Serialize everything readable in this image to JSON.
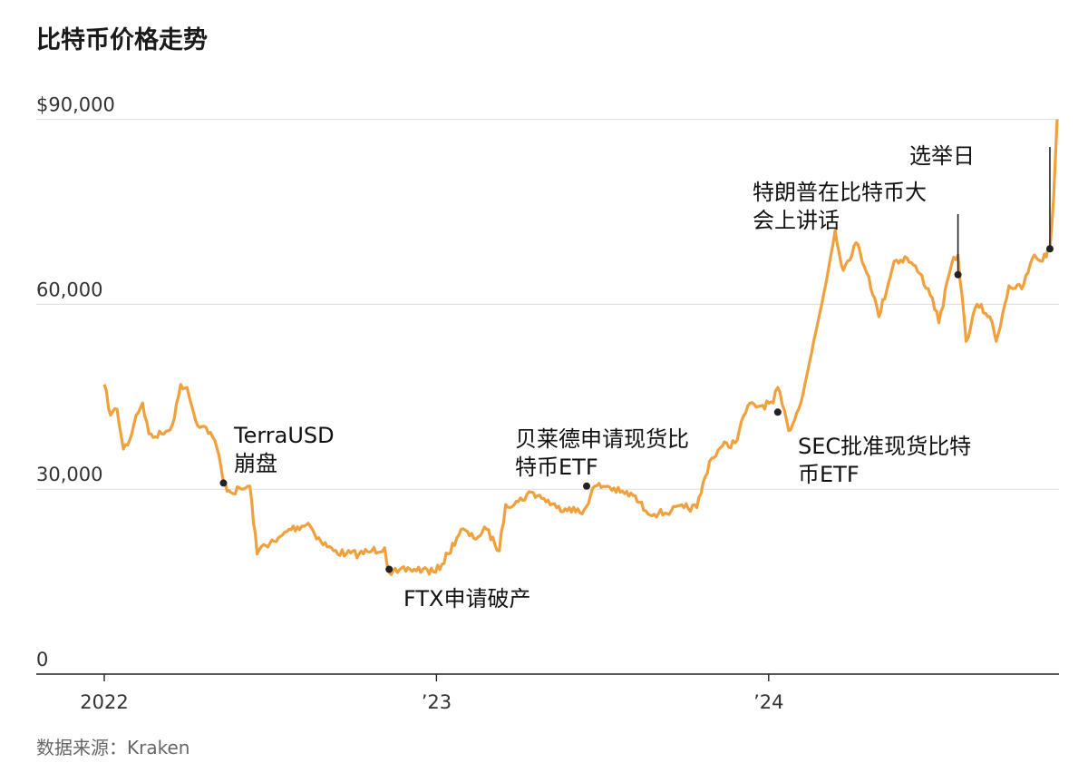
{
  "title": "比特币价格走势",
  "source": "数据来源：Kraken",
  "chart_data": {
    "type": "line",
    "title": "比特币价格走势",
    "xlabel": "",
    "ylabel": "",
    "xlim": [
      "2022-01-01",
      "2024-11-13"
    ],
    "ylim": [
      0,
      92000
    ],
    "grid": true,
    "yticks": [
      {
        "value": 0,
        "label": "0"
      },
      {
        "value": 30000,
        "label": "30,000"
      },
      {
        "value": 60000,
        "label": "60,000"
      },
      {
        "value": 90000,
        "label": "$90,000"
      }
    ],
    "xticks": [
      {
        "date": "2022-01-01",
        "label": "2022"
      },
      {
        "date": "2023-01-01",
        "label": "’23"
      },
      {
        "date": "2024-01-01",
        "label": "’24"
      }
    ],
    "colors": {
      "line": "#f0a03c",
      "grid": "#dddddd",
      "axis": "#222222",
      "marker": "#222222"
    },
    "series": [
      {
        "name": "",
        "x": [
          "2022-01-01",
          "2022-01-08",
          "2022-01-15",
          "2022-01-22",
          "2022-01-29",
          "2022-02-05",
          "2022-02-12",
          "2022-02-19",
          "2022-02-26",
          "2022-03-05",
          "2022-03-12",
          "2022-03-19",
          "2022-03-26",
          "2022-04-02",
          "2022-04-09",
          "2022-04-16",
          "2022-04-23",
          "2022-04-30",
          "2022-05-07",
          "2022-05-12",
          "2022-05-20",
          "2022-06-01",
          "2022-06-10",
          "2022-06-18",
          "2022-06-25",
          "2022-07-09",
          "2022-07-23",
          "2022-08-06",
          "2022-08-13",
          "2022-08-27",
          "2022-09-10",
          "2022-09-24",
          "2022-10-08",
          "2022-10-22",
          "2022-11-05",
          "2022-11-10",
          "2022-11-19",
          "2022-12-03",
          "2022-12-17",
          "2022-12-31",
          "2023-01-14",
          "2023-01-28",
          "2023-02-11",
          "2023-02-25",
          "2023-03-11",
          "2023-03-18",
          "2023-04-01",
          "2023-04-15",
          "2023-04-29",
          "2023-05-13",
          "2023-05-27",
          "2023-06-10",
          "2023-06-24",
          "2023-07-08",
          "2023-07-22",
          "2023-08-05",
          "2023-08-19",
          "2023-09-02",
          "2023-09-16",
          "2023-09-30",
          "2023-10-14",
          "2023-10-28",
          "2023-11-11",
          "2023-11-25",
          "2023-12-09",
          "2023-12-23",
          "2024-01-06",
          "2024-01-11",
          "2024-01-23",
          "2024-02-03",
          "2024-02-17",
          "2024-03-02",
          "2024-03-14",
          "2024-03-23",
          "2024-04-06",
          "2024-04-20",
          "2024-05-01",
          "2024-05-18",
          "2024-06-01",
          "2024-06-15",
          "2024-06-29",
          "2024-07-06",
          "2024-07-20",
          "2024-07-27",
          "2024-08-05",
          "2024-08-17",
          "2024-08-31",
          "2024-09-07",
          "2024-09-21",
          "2024-10-05",
          "2024-10-19",
          "2024-10-26",
          "2024-11-05",
          "2024-11-09",
          "2024-11-13"
        ],
        "values": [
          47000,
          42000,
          43000,
          36500,
          38000,
          42000,
          44000,
          39000,
          38500,
          39000,
          39500,
          41500,
          47000,
          46500,
          42500,
          40000,
          40000,
          38500,
          35500,
          31000,
          29500,
          30000,
          30500,
          19500,
          21000,
          21500,
          23500,
          24000,
          24500,
          21500,
          20000,
          19500,
          19500,
          20000,
          20500,
          16500,
          16500,
          17000,
          17000,
          16500,
          19500,
          23500,
          22000,
          23500,
          20000,
          27500,
          28000,
          29500,
          28500,
          27000,
          27000,
          26000,
          30500,
          30500,
          29500,
          29000,
          26500,
          26000,
          26500,
          27000,
          27000,
          34500,
          37000,
          37500,
          43500,
          43500,
          44000,
          46500,
          39500,
          43000,
          52000,
          62000,
          72000,
          65500,
          70000,
          64500,
          58000,
          67000,
          67500,
          65000,
          61000,
          57000,
          66500,
          68000,
          54000,
          60000,
          58000,
          54000,
          63000,
          62500,
          68000,
          67000,
          69000,
          77000,
          90000
        ]
      }
    ],
    "annotations": [
      {
        "date": "2022-05-12",
        "value": 31000,
        "label": [
          "TerraUSD",
          "崩盘"
        ]
      },
      {
        "date": "2022-11-10",
        "value": 17000,
        "label": [
          "FTX申请破产"
        ]
      },
      {
        "date": "2023-06-15",
        "value": 30500,
        "label": [
          "贝莱德申请现货比",
          "特币ETF"
        ]
      },
      {
        "date": "2024-01-11",
        "value": 42500,
        "label": [
          "SEC批准现货比特",
          "币ETF"
        ]
      },
      {
        "date": "2024-07-27",
        "value": 64800,
        "label": [
          "特朗普在比特币大",
          "会上讲话"
        ]
      },
      {
        "date": "2024-11-05",
        "value": 69000,
        "label": [
          "选举日"
        ]
      }
    ]
  }
}
